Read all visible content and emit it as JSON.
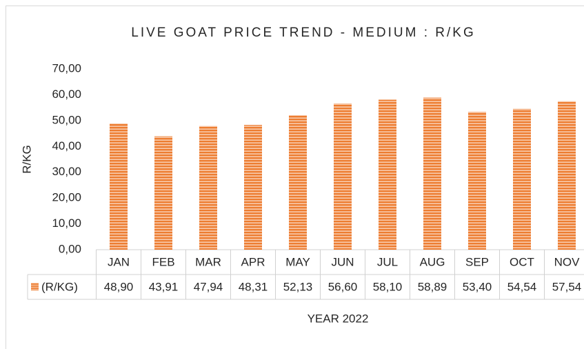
{
  "chart_data": {
    "type": "bar",
    "title": "LIVE GOAT PRICE TREND - MEDIUM :  R/KG",
    "y_axis_label": "R/KG",
    "x_axis_label": "YEAR 2022",
    "categories": [
      "JAN",
      "FEB",
      "MAR",
      "APR",
      "MAY",
      "JUN",
      "JUL",
      "AUG",
      "SEP",
      "OCT",
      "NOV"
    ],
    "series": [
      {
        "name": "(R/KG)",
        "color": "#ed7d31",
        "values": [
          48.9,
          43.91,
          47.94,
          48.31,
          52.13,
          56.6,
          58.1,
          58.89,
          53.4,
          54.54,
          57.54
        ],
        "value_labels": [
          "48,90",
          "43,91",
          "47,94",
          "48,31",
          "52,13",
          "56,60",
          "58,10",
          "58,89",
          "53,40",
          "54,54",
          "57,54"
        ]
      }
    ],
    "ylim": [
      0,
      70
    ],
    "yticks": [
      {
        "value": 0,
        "label": "0,00"
      },
      {
        "value": 10,
        "label": "10,00"
      },
      {
        "value": 20,
        "label": "20,00"
      },
      {
        "value": 30,
        "label": "30,00"
      },
      {
        "value": 40,
        "label": "40,00"
      },
      {
        "value": 50,
        "label": "50,00"
      },
      {
        "value": 60,
        "label": "60,00"
      },
      {
        "value": 70,
        "label": "70,00"
      }
    ],
    "grid": false
  }
}
